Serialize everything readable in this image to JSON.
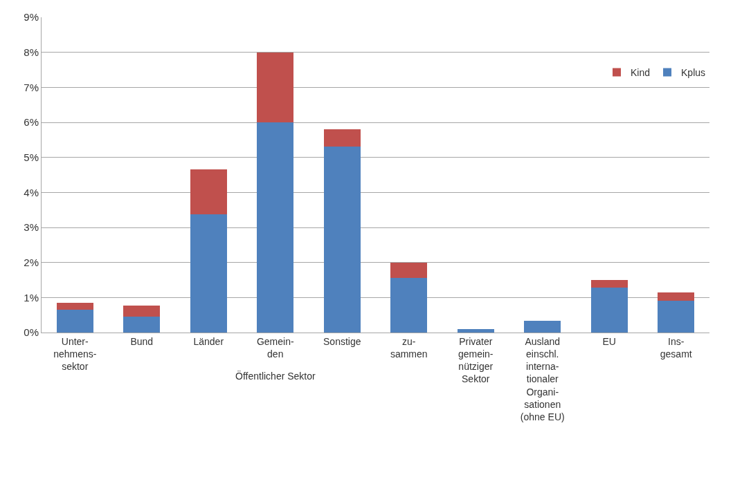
{
  "chart_data": {
    "type": "bar",
    "stacked": true,
    "categories": [
      "Unter-\nnehmens-\nsektor",
      "Bund",
      "Länder",
      "Gemein-\nden",
      "Sonstige",
      "zu-\nsammen",
      "Privater\ngemein-\nnütziger\nSektor",
      "Ausland\neinschl.\ninterna-\ntionaler\nOrgani-\nsationen\n(ohne EU)",
      "EU",
      "Ins-\ngesamt"
    ],
    "series": [
      {
        "name": "Kplus",
        "color": "#4f81bd",
        "values": [
          0.66,
          0.46,
          3.37,
          6.0,
          5.3,
          1.56,
          0.1,
          0.33,
          1.28,
          0.9
        ]
      },
      {
        "name": "Kind",
        "color": "#c0504d",
        "values": [
          0.18,
          0.3,
          1.28,
          2.0,
          0.5,
          0.44,
          0,
          0,
          0.22,
          0.24
        ]
      }
    ],
    "ylim": [
      0,
      9
    ],
    "yticks": [
      {
        "value": 0,
        "label": "0%"
      },
      {
        "value": 1,
        "label": "1%"
      },
      {
        "value": 2,
        "label": "2%"
      },
      {
        "value": 3,
        "label": "3%"
      },
      {
        "value": 4,
        "label": "4%"
      },
      {
        "value": 5,
        "label": "5%"
      },
      {
        "value": 6,
        "label": "6%"
      },
      {
        "value": 7,
        "label": "7%"
      },
      {
        "value": 8,
        "label": "8%"
      },
      {
        "value": 9,
        "label": "9%"
      }
    ],
    "grid": "y",
    "legend": "top right",
    "annotations": [
      "Öffentlicher Sektor"
    ]
  }
}
